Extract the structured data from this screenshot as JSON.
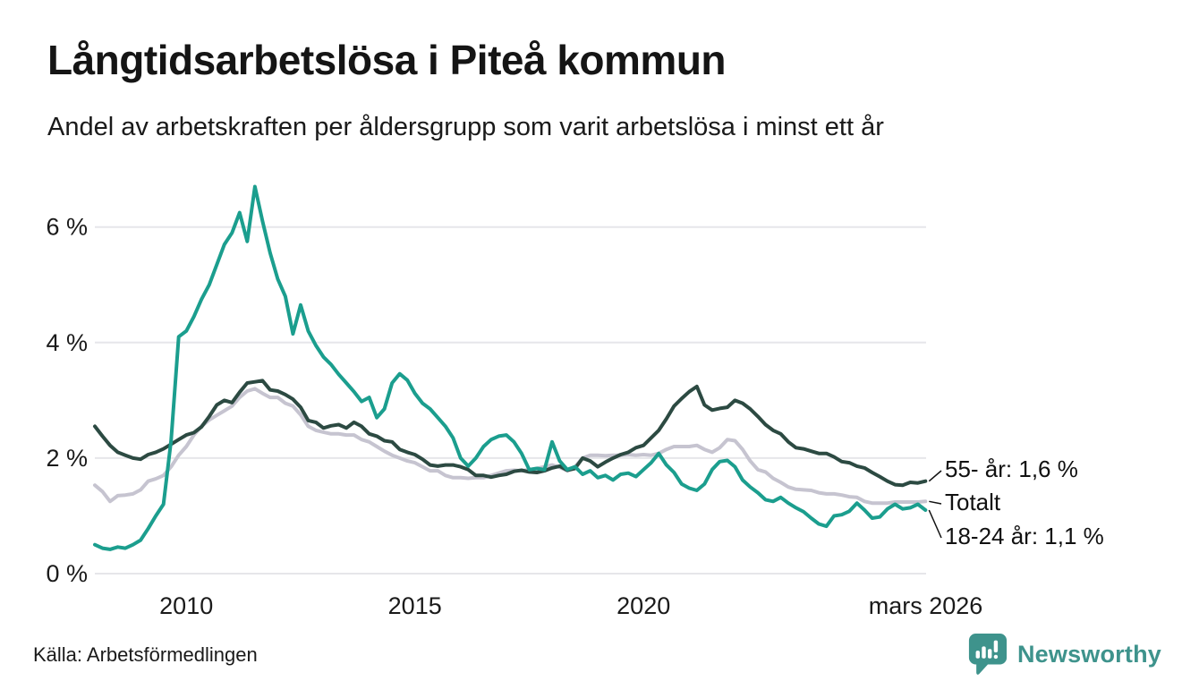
{
  "header": {
    "title": "Långtidsarbetslösa i Piteå kommun",
    "subtitle": "Andel av arbetskraften per åldersgrupp som varit arbetslösa i minst ett år"
  },
  "footer": {
    "source": "Källa: Arbetsförmedlingen",
    "brand": "Newsworthy"
  },
  "colors": {
    "teal_series": "#1b9e8e",
    "dark_green_series": "#2c4a42",
    "gray_series": "#c6c4d0",
    "gridline": "#e6e6ea",
    "text": "#1a1a1a",
    "brand_teal": "#3e938c"
  },
  "chart_data": {
    "type": "line",
    "title": "Långtidsarbetslösa i Piteå kommun",
    "subtitle": "Andel av arbetskraften per åldersgrupp som varit arbetslösa i minst ett år",
    "source": "Källa: Arbetsförmedlingen",
    "grid": true,
    "xlim": [
      2008,
      2026.3
    ],
    "ylim": [
      0,
      6.9
    ],
    "x_start_year": 2008.0,
    "x_step_years": 0.16667,
    "x_ticks": [
      {
        "x": 2010,
        "label": "2010"
      },
      {
        "x": 2015,
        "label": "2015"
      },
      {
        "x": 2020,
        "label": "2020"
      },
      {
        "x": 2026.17,
        "label": "mars 2026"
      }
    ],
    "y_ticks": [
      {
        "v": 0,
        "label": "0 %"
      },
      {
        "v": 2,
        "label": "2 %"
      },
      {
        "v": 4,
        "label": "4 %"
      },
      {
        "v": 6,
        "label": "6 %"
      }
    ],
    "legend_position": "end-of-line-labels",
    "series": [
      {
        "name": "Totalt",
        "end_label": "Totalt",
        "end_value": 1.25,
        "color": "#c6c4d0",
        "values": [
          1.53,
          1.42,
          1.25,
          1.35,
          1.36,
          1.38,
          1.45,
          1.6,
          1.64,
          1.7,
          1.85,
          2.05,
          2.2,
          2.4,
          2.55,
          2.66,
          2.74,
          2.82,
          2.9,
          3.05,
          3.16,
          3.2,
          3.12,
          3.05,
          3.05,
          2.95,
          2.9,
          2.75,
          2.55,
          2.48,
          2.45,
          2.42,
          2.42,
          2.4,
          2.4,
          2.32,
          2.28,
          2.2,
          2.12,
          2.05,
          2.0,
          1.95,
          1.92,
          1.85,
          1.78,
          1.78,
          1.7,
          1.66,
          1.66,
          1.65,
          1.66,
          1.66,
          1.7,
          1.74,
          1.78,
          1.79,
          1.78,
          1.8,
          1.82,
          1.85,
          1.88,
          1.84,
          1.78,
          1.85,
          2.0,
          2.05,
          2.05,
          2.04,
          2.05,
          2.05,
          2.06,
          2.05,
          2.06,
          2.05,
          2.08,
          2.15,
          2.2,
          2.2,
          2.2,
          2.22,
          2.15,
          2.1,
          2.18,
          2.32,
          2.3,
          2.15,
          1.95,
          1.8,
          1.76,
          1.65,
          1.58,
          1.5,
          1.46,
          1.45,
          1.44,
          1.4,
          1.38,
          1.38,
          1.36,
          1.33,
          1.32,
          1.25,
          1.22,
          1.22,
          1.22,
          1.24,
          1.24,
          1.24,
          1.24,
          1.25
        ]
      },
      {
        "name": "55- år",
        "end_label": "55- år: 1,6 %",
        "end_value": 1.6,
        "color": "#2c4a42",
        "values": [
          2.55,
          2.38,
          2.22,
          2.1,
          2.05,
          2.0,
          1.98,
          2.06,
          2.1,
          2.16,
          2.24,
          2.32,
          2.4,
          2.44,
          2.54,
          2.72,
          2.92,
          3.0,
          2.96,
          3.14,
          3.3,
          3.32,
          3.34,
          3.18,
          3.16,
          3.1,
          3.02,
          2.88,
          2.65,
          2.62,
          2.52,
          2.56,
          2.58,
          2.52,
          2.62,
          2.55,
          2.42,
          2.38,
          2.3,
          2.28,
          2.15,
          2.1,
          2.06,
          1.98,
          1.88,
          1.86,
          1.88,
          1.88,
          1.85,
          1.8,
          1.7,
          1.7,
          1.67,
          1.7,
          1.72,
          1.77,
          1.79,
          1.76,
          1.75,
          1.78,
          1.83,
          1.86,
          1.79,
          1.82,
          2.0,
          1.95,
          1.85,
          1.93,
          2.0,
          2.06,
          2.1,
          2.18,
          2.22,
          2.35,
          2.48,
          2.68,
          2.9,
          3.03,
          3.15,
          3.24,
          2.92,
          2.83,
          2.86,
          2.88,
          3.0,
          2.95,
          2.85,
          2.72,
          2.58,
          2.48,
          2.42,
          2.28,
          2.18,
          2.16,
          2.12,
          2.08,
          2.08,
          2.02,
          1.94,
          1.92,
          1.86,
          1.83,
          1.75,
          1.68,
          1.6,
          1.54,
          1.53,
          1.58,
          1.57,
          1.6
        ]
      },
      {
        "name": "18-24 år",
        "end_label": "18-24 år: 1,1 %",
        "end_value": 1.1,
        "color": "#1b9e8e",
        "values": [
          0.5,
          0.44,
          0.42,
          0.46,
          0.44,
          0.5,
          0.58,
          0.78,
          1.0,
          1.2,
          2.3,
          4.1,
          4.2,
          4.45,
          4.75,
          5.0,
          5.35,
          5.7,
          5.9,
          6.25,
          5.75,
          6.7,
          6.1,
          5.55,
          5.1,
          4.8,
          4.15,
          4.65,
          4.2,
          3.95,
          3.75,
          3.62,
          3.45,
          3.3,
          3.15,
          2.98,
          3.05,
          2.7,
          2.85,
          3.3,
          3.46,
          3.35,
          3.12,
          2.95,
          2.85,
          2.7,
          2.55,
          2.35,
          2.0,
          1.86,
          2.0,
          2.2,
          2.32,
          2.38,
          2.4,
          2.28,
          2.08,
          1.8,
          1.82,
          1.8,
          2.28,
          1.95,
          1.8,
          1.85,
          1.72,
          1.78,
          1.66,
          1.7,
          1.62,
          1.72,
          1.74,
          1.68,
          1.8,
          1.92,
          2.08,
          1.88,
          1.75,
          1.55,
          1.48,
          1.44,
          1.55,
          1.8,
          1.94,
          1.96,
          1.85,
          1.62,
          1.5,
          1.4,
          1.28,
          1.25,
          1.32,
          1.22,
          1.14,
          1.07,
          0.96,
          0.86,
          0.82,
          1.0,
          1.02,
          1.08,
          1.22,
          1.1,
          0.96,
          0.98,
          1.12,
          1.2,
          1.12,
          1.14,
          1.2,
          1.1
        ]
      }
    ]
  }
}
